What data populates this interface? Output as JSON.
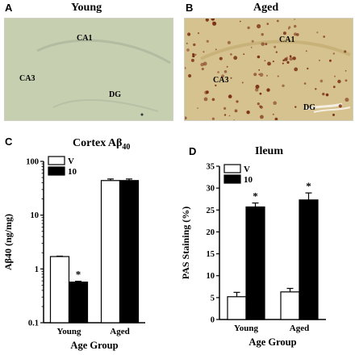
{
  "panels": {
    "A": {
      "letter": "A",
      "title": "Young",
      "regions": {
        "ca1": "CA1",
        "ca3": "CA3",
        "dg": "DG"
      }
    },
    "B": {
      "letter": "B",
      "title": "Aged",
      "regions": {
        "ca1": "CA1",
        "ca3": "CA3",
        "dg": "DG"
      }
    },
    "C": {
      "letter": "C",
      "title": "Cortex Aβ",
      "title_sub": "40"
    },
    "D": {
      "letter": "D",
      "title": "Ileum"
    }
  },
  "colors": {
    "young_tissue": "#c7cfb1",
    "aged_tissue": "#d6c28f",
    "plaque": "#7a2e14",
    "bar_v": "#ffffff",
    "bar_10": "#000000"
  },
  "chart_data": [
    {
      "panel": "C",
      "type": "bar",
      "title": "Cortex Aβ40",
      "xlabel": "Age Group",
      "ylabel": "Aβ40 (ng/mg)",
      "yscale": "log",
      "ylim": [
        0.1,
        100
      ],
      "yticks": [
        "0.1",
        "1",
        "10",
        "100"
      ],
      "categories": [
        "Young",
        "Aged"
      ],
      "legend": {
        "position": "top-left",
        "entries": [
          "V",
          "10"
        ]
      },
      "series": [
        {
          "name": "V",
          "values": [
            1.7,
            44
          ],
          "errors": [
            0.03,
            3
          ]
        },
        {
          "name": "10",
          "values": [
            0.57,
            44
          ],
          "errors": [
            0.02,
            3
          ]
        }
      ],
      "annotations": [
        {
          "text": "*",
          "category": "Young",
          "series": "10"
        }
      ]
    },
    {
      "panel": "D",
      "type": "bar",
      "title": "Ileum",
      "xlabel": "Age Group",
      "ylabel": "PAS Staining (%)",
      "ylim": [
        0,
        35
      ],
      "yticks": [
        "0",
        "5",
        "10",
        "15",
        "20",
        "25",
        "30",
        "35"
      ],
      "categories": [
        "Young",
        "Aged"
      ],
      "legend": {
        "position": "top-left",
        "entries": [
          "V",
          "10"
        ]
      },
      "series": [
        {
          "name": "V",
          "values": [
            5.2,
            6.3
          ],
          "errors": [
            1.0,
            0.8
          ]
        },
        {
          "name": "10",
          "values": [
            25.7,
            27.3
          ],
          "errors": [
            0.9,
            1.6
          ]
        }
      ],
      "annotations": [
        {
          "text": "*",
          "category": "Young",
          "series": "10"
        },
        {
          "text": "*",
          "category": "Aged",
          "series": "10"
        }
      ]
    }
  ]
}
